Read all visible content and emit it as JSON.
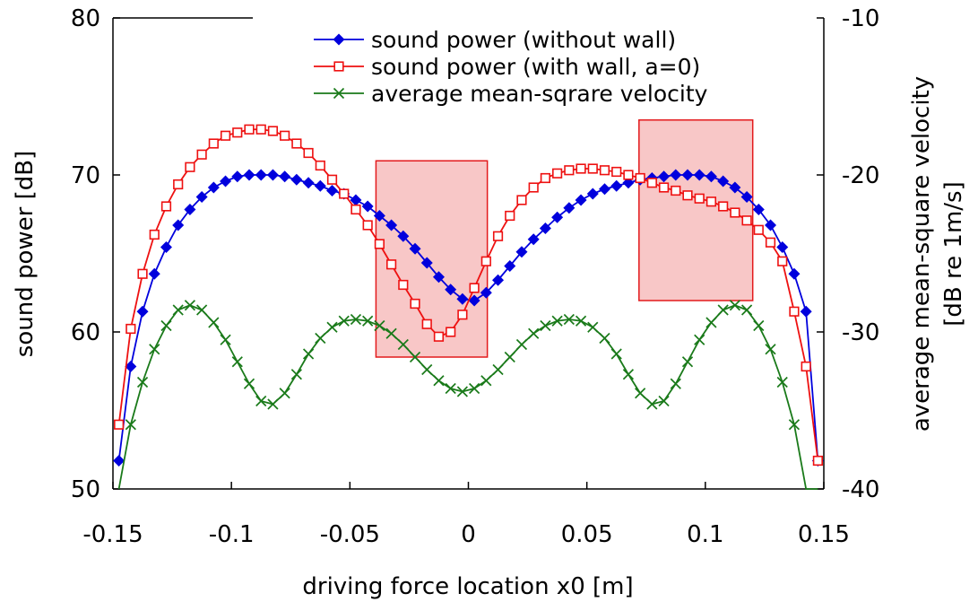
{
  "chart_data": {
    "type": "line",
    "xlabel": "driving force location x0 [m]",
    "ylabel": "sound power [dB]",
    "y2label_line1": "average mean-square velocity",
    "y2label_line2": "[dB re 1m/s]",
    "xlim": [
      -0.15,
      0.15
    ],
    "ylim": [
      50,
      80
    ],
    "y2lim": [
      -40,
      -10
    ],
    "xticks": [
      "-0.15",
      "-0.1",
      "-0.05",
      "0",
      "0.05",
      "0.1",
      "0.15"
    ],
    "yticks": [
      "50",
      "60",
      "70",
      "80"
    ],
    "y2ticks": [
      "-40",
      "-30",
      "-20",
      "-10"
    ],
    "legend_position": "top-right",
    "highlight_boxes": [
      {
        "x": [
          -0.039,
          0.008
        ],
        "y": [
          58.4,
          70.9
        ]
      },
      {
        "x": [
          0.072,
          0.12
        ],
        "y": [
          62.0,
          73.5
        ]
      }
    ],
    "series": [
      {
        "name": "sound power (without wall)",
        "axis": "left",
        "color": "#0000dd",
        "marker": "filled-diamond",
        "x": [
          -0.1475,
          -0.1425,
          -0.1375,
          -0.1325,
          -0.1275,
          -0.1225,
          -0.1175,
          -0.1125,
          -0.1075,
          -0.1025,
          -0.0975,
          -0.0925,
          -0.0875,
          -0.0825,
          -0.0775,
          -0.0725,
          -0.0675,
          -0.0625,
          -0.0575,
          -0.0525,
          -0.0475,
          -0.0425,
          -0.0375,
          -0.0325,
          -0.0275,
          -0.0225,
          -0.0175,
          -0.0125,
          -0.0075,
          -0.0025,
          0.0025,
          0.0075,
          0.0125,
          0.0175,
          0.0225,
          0.0275,
          0.0325,
          0.0375,
          0.0425,
          0.0475,
          0.0525,
          0.0575,
          0.0625,
          0.0675,
          0.0725,
          0.0775,
          0.0825,
          0.0875,
          0.0925,
          0.0975,
          0.1025,
          0.1075,
          0.1125,
          0.1175,
          0.1225,
          0.1275,
          0.1325,
          0.1375,
          0.1425,
          0.1475
        ],
        "values": [
          51.8,
          57.8,
          61.3,
          63.7,
          65.4,
          66.8,
          67.8,
          68.6,
          69.2,
          69.6,
          69.9,
          70.0,
          70.0,
          70.0,
          69.9,
          69.7,
          69.5,
          69.3,
          69.0,
          68.8,
          68.4,
          68.0,
          67.4,
          66.8,
          66.1,
          65.3,
          64.4,
          63.5,
          62.7,
          62.1,
          62.0,
          62.5,
          63.3,
          64.2,
          65.1,
          65.9,
          66.6,
          67.3,
          67.9,
          68.4,
          68.8,
          69.1,
          69.3,
          69.5,
          69.7,
          69.8,
          69.9,
          70.0,
          70.0,
          70.0,
          69.9,
          69.6,
          69.2,
          68.6,
          67.8,
          66.8,
          65.4,
          63.7,
          61.3,
          51.8
        ]
      },
      {
        "name": "sound power (with wall, a=0)",
        "axis": "left",
        "color": "#ee1111",
        "marker": "open-square",
        "x": [
          -0.1475,
          -0.1425,
          -0.1375,
          -0.1325,
          -0.1275,
          -0.1225,
          -0.1175,
          -0.1125,
          -0.1075,
          -0.1025,
          -0.0975,
          -0.0925,
          -0.0875,
          -0.0825,
          -0.0775,
          -0.0725,
          -0.0675,
          -0.0625,
          -0.0575,
          -0.0525,
          -0.0475,
          -0.0425,
          -0.0375,
          -0.0325,
          -0.0275,
          -0.0225,
          -0.0175,
          -0.0125,
          -0.0075,
          -0.0025,
          0.0025,
          0.0075,
          0.0125,
          0.0175,
          0.0225,
          0.0275,
          0.0325,
          0.0375,
          0.0425,
          0.0475,
          0.0525,
          0.0575,
          0.0625,
          0.0675,
          0.0725,
          0.0775,
          0.0825,
          0.0875,
          0.0925,
          0.0975,
          0.1025,
          0.1075,
          0.1125,
          0.1175,
          0.1225,
          0.1275,
          0.1325,
          0.1375,
          0.1425,
          0.1475
        ],
        "values": [
          54.1,
          60.2,
          63.7,
          66.2,
          68.0,
          69.4,
          70.5,
          71.3,
          72.0,
          72.5,
          72.7,
          72.9,
          72.9,
          72.8,
          72.5,
          72.0,
          71.4,
          70.6,
          69.7,
          68.8,
          67.8,
          66.8,
          65.6,
          64.3,
          63.0,
          61.8,
          60.5,
          59.7,
          60.0,
          61.1,
          62.8,
          64.5,
          66.1,
          67.4,
          68.4,
          69.2,
          69.8,
          70.1,
          70.3,
          70.4,
          70.4,
          70.3,
          70.2,
          70.0,
          69.8,
          69.5,
          69.2,
          69.0,
          68.7,
          68.5,
          68.3,
          68.0,
          67.6,
          67.1,
          66.5,
          65.7,
          64.5,
          61.3,
          57.8,
          51.8
        ]
      },
      {
        "name": "average mean-sqrare velocity",
        "axis": "right",
        "color": "#1a7a1a",
        "marker": "cross",
        "x": [
          -0.1475,
          -0.1425,
          -0.1375,
          -0.1325,
          -0.1275,
          -0.1225,
          -0.1175,
          -0.1125,
          -0.1075,
          -0.1025,
          -0.0975,
          -0.0925,
          -0.0875,
          -0.0825,
          -0.0775,
          -0.0725,
          -0.0675,
          -0.0625,
          -0.0575,
          -0.0525,
          -0.0475,
          -0.0425,
          -0.0375,
          -0.0325,
          -0.0275,
          -0.0225,
          -0.0175,
          -0.0125,
          -0.0075,
          -0.0025,
          0.0025,
          0.0075,
          0.0125,
          0.0175,
          0.0225,
          0.0275,
          0.0325,
          0.0375,
          0.0425,
          0.0475,
          0.0525,
          0.0575,
          0.0625,
          0.0675,
          0.0725,
          0.0775,
          0.0825,
          0.0875,
          0.0925,
          0.0975,
          0.1025,
          0.1075,
          0.1125,
          0.1175,
          0.1225,
          0.1275,
          0.1325,
          0.1375,
          0.1425,
          0.1475
        ],
        "values": [
          -40.5,
          -35.9,
          -33.2,
          -31.1,
          -29.6,
          -28.6,
          -28.3,
          -28.6,
          -29.4,
          -30.5,
          -31.9,
          -33.3,
          -34.4,
          -34.6,
          -33.9,
          -32.7,
          -31.4,
          -30.4,
          -29.7,
          -29.3,
          -29.2,
          -29.3,
          -29.6,
          -30.1,
          -30.8,
          -31.6,
          -32.4,
          -33.1,
          -33.6,
          -33.8,
          -33.6,
          -33.1,
          -32.4,
          -31.6,
          -30.8,
          -30.1,
          -29.6,
          -29.3,
          -29.2,
          -29.3,
          -29.7,
          -30.4,
          -31.4,
          -32.7,
          -33.9,
          -34.6,
          -34.4,
          -33.3,
          -31.9,
          -30.5,
          -29.4,
          -28.6,
          -28.3,
          -28.6,
          -29.6,
          -31.1,
          -33.2,
          -35.9,
          -40.5,
          -42.0
        ]
      }
    ]
  }
}
